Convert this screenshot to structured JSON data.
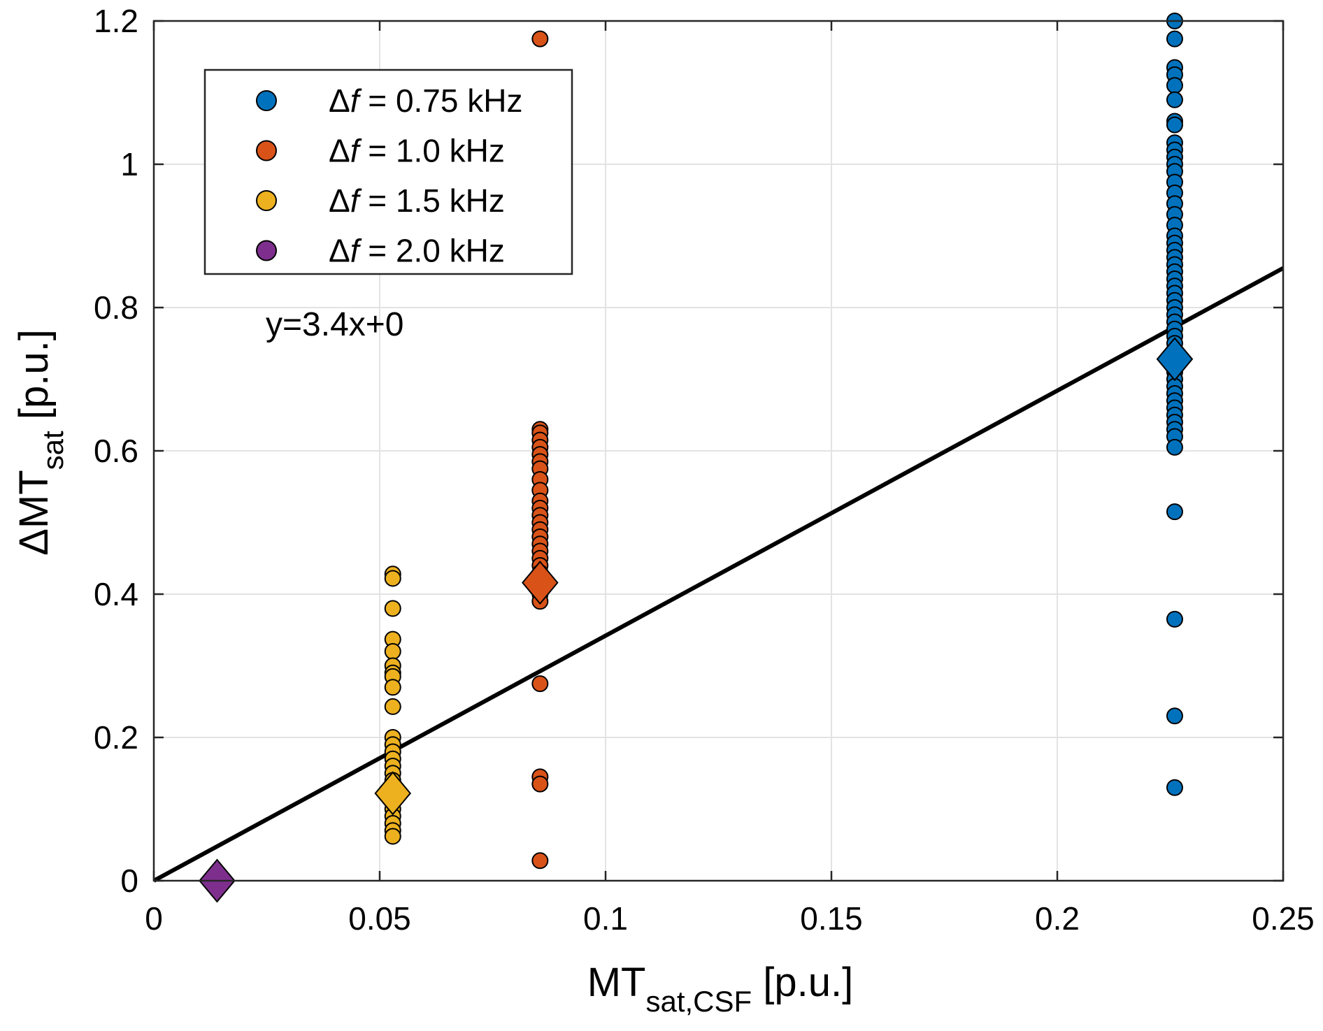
{
  "chart_data": {
    "type": "scatter",
    "title": "",
    "xlabel": {
      "main": "MT",
      "sub": "sat,CSF",
      "unit": " [p.u.]"
    },
    "ylabel": {
      "main": "ΔMT",
      "sub": "sat",
      "unit": " [p.u.]"
    },
    "xlim": [
      0,
      0.25
    ],
    "ylim": [
      0,
      1.2
    ],
    "xticks": [
      0,
      0.05,
      0.1,
      0.15,
      0.2,
      0.25
    ],
    "xtick_labels": [
      "0",
      "0.05",
      "0.1",
      "0.15",
      "0.2",
      "0.25"
    ],
    "yticks": [
      0,
      0.2,
      0.4,
      0.6,
      0.8,
      1,
      1.2
    ],
    "ytick_labels": [
      "0",
      "0.2",
      "0.4",
      "0.6",
      "0.8",
      "1",
      "1.2"
    ],
    "grid": true,
    "legend_position": "top-left",
    "series": [
      {
        "name": "Δf = 0.75 kHz",
        "legend_prefix": "Δ",
        "legend_italic": "f",
        "legend_suffix": " = 0.75 kHz",
        "color": "#0072BD",
        "x": 0.226,
        "y": [
          1.2,
          1.175,
          1.135,
          1.125,
          1.11,
          1.09,
          1.06,
          1.055,
          1.03,
          1.02,
          1.01,
          1.0,
          0.99,
          0.975,
          0.96,
          0.945,
          0.93,
          0.915,
          0.9,
          0.89,
          0.88,
          0.87,
          0.86,
          0.85,
          0.84,
          0.83,
          0.82,
          0.81,
          0.8,
          0.79,
          0.78,
          0.77,
          0.76,
          0.75,
          0.74,
          0.73,
          0.72,
          0.71,
          0.7,
          0.69,
          0.68,
          0.67,
          0.66,
          0.65,
          0.64,
          0.63,
          0.62,
          0.605,
          0.515,
          0.365,
          0.23,
          0.13
        ],
        "mean": 0.728
      },
      {
        "name": "Δf = 1.0 kHz",
        "legend_prefix": "Δ",
        "legend_italic": "f",
        "legend_suffix": " = 1.0 kHz",
        "color": "#D95319",
        "x": 0.0855,
        "y": [
          1.175,
          0.63,
          0.625,
          0.615,
          0.605,
          0.595,
          0.585,
          0.575,
          0.56,
          0.545,
          0.53,
          0.52,
          0.51,
          0.5,
          0.49,
          0.48,
          0.47,
          0.46,
          0.45,
          0.44,
          0.43,
          0.42,
          0.41,
          0.4,
          0.39,
          0.275,
          0.145,
          0.135,
          0.028
        ],
        "mean": 0.416
      },
      {
        "name": "Δf = 1.5 kHz",
        "legend_prefix": "Δ",
        "legend_italic": "f",
        "legend_suffix": " = 1.5 kHz",
        "color": "#EDB120",
        "x": 0.0529,
        "y": [
          0.428,
          0.422,
          0.38,
          0.337,
          0.32,
          0.3,
          0.29,
          0.285,
          0.27,
          0.243,
          0.2,
          0.19,
          0.18,
          0.17,
          0.16,
          0.15,
          0.14,
          0.13,
          0.12,
          0.11,
          0.1,
          0.09,
          0.08,
          0.07,
          0.062
        ],
        "mean": 0.122
      },
      {
        "name": "Δf = 2.0 kHz",
        "legend_prefix": "Δ",
        "legend_italic": "f",
        "legend_suffix": " = 2.0 kHz",
        "color": "#7E2F8E",
        "x": 0.014,
        "y": [],
        "mean": 0.0
      }
    ],
    "fit_line": {
      "slope": 3.42,
      "intercept": 0,
      "x_range": [
        0,
        0.25
      ],
      "label": "y=3.4x+0"
    }
  }
}
